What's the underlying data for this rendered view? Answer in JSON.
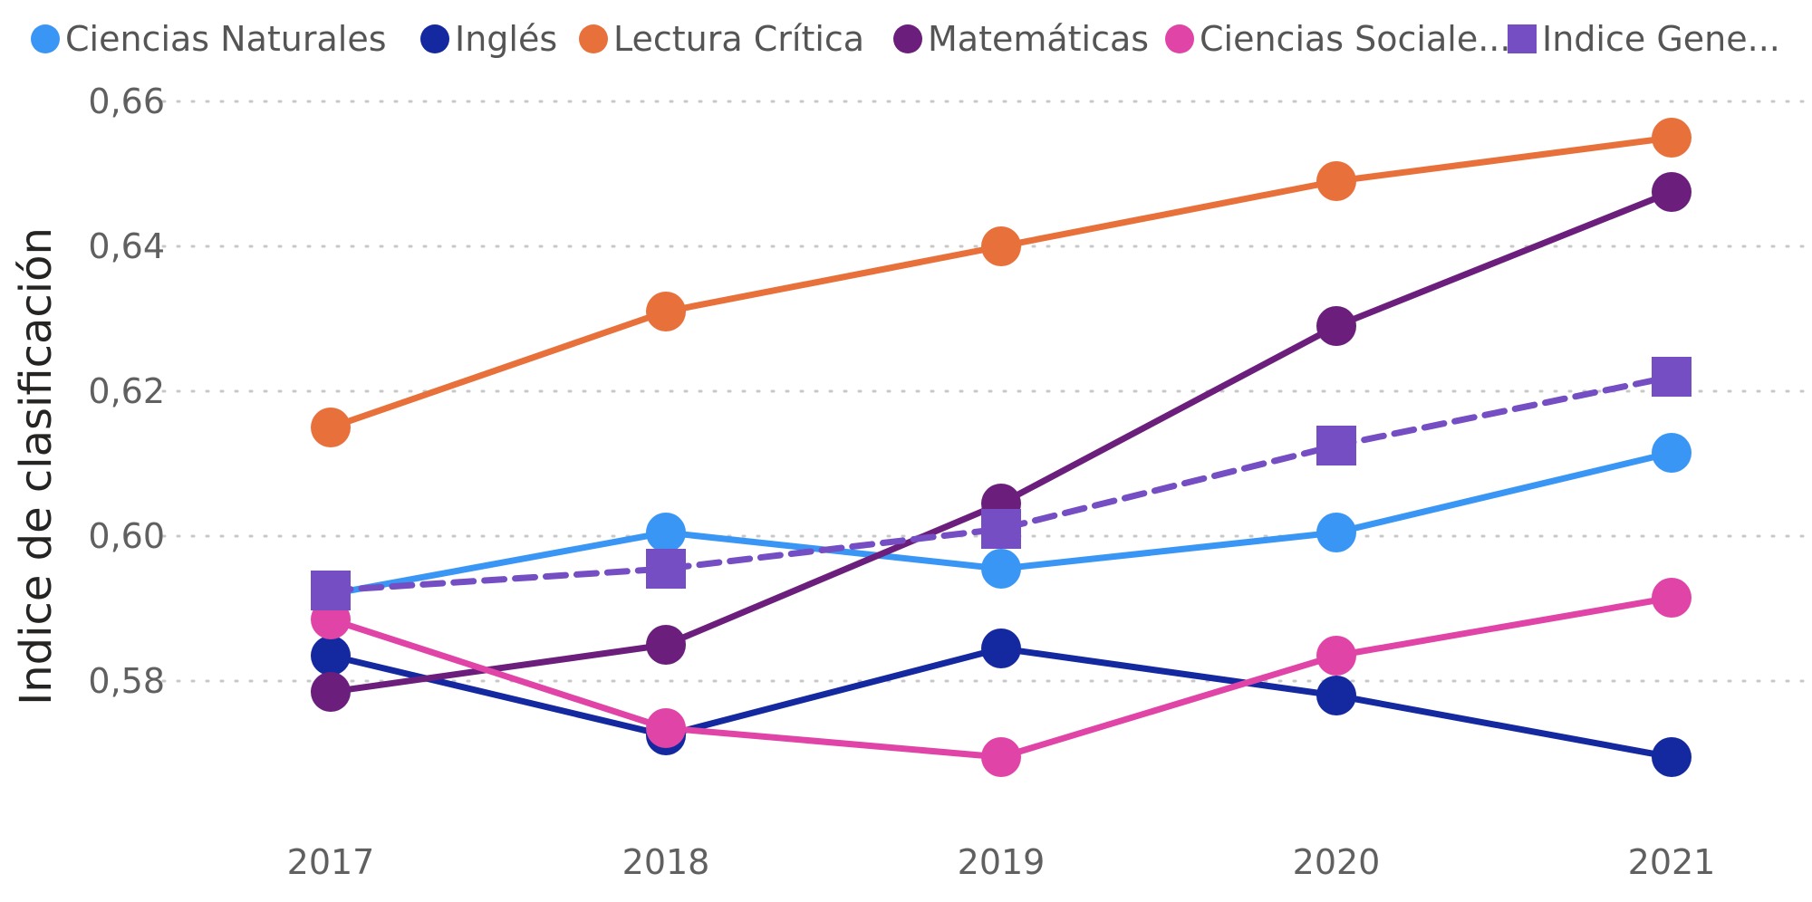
{
  "chart_data": {
    "type": "line",
    "title": "",
    "xlabel": "",
    "ylabel": "Indice de clasificación",
    "x": [
      "2017",
      "2018",
      "2019",
      "2020",
      "2021"
    ],
    "ylim": [
      0.56,
      0.665
    ],
    "yticks": [
      0.58,
      0.6,
      0.62,
      0.64,
      0.66
    ],
    "ytick_labels": [
      "0,58",
      "0,60",
      "0,62",
      "0,64",
      "0,66"
    ],
    "grid": true,
    "legend_position": "top",
    "series": [
      {
        "name": "Ciencias Naturales",
        "color": "#3a96f5",
        "marker": "circle",
        "dashed": false,
        "values": [
          0.592,
          0.6005,
          0.5955,
          0.6005,
          0.6115
        ]
      },
      {
        "name": "Inglés",
        "color": "#1428a0",
        "marker": "circle",
        "dashed": false,
        "values": [
          0.5835,
          0.5725,
          0.5845,
          0.578,
          0.5695
        ]
      },
      {
        "name": "Lectura Crítica",
        "color": "#e8703a",
        "marker": "circle",
        "dashed": false,
        "values": [
          0.615,
          0.631,
          0.64,
          0.649,
          0.655
        ]
      },
      {
        "name": "Matemáticas",
        "color": "#6b1e7c",
        "marker": "circle",
        "dashed": false,
        "values": [
          0.5785,
          0.585,
          0.6045,
          0.629,
          0.6475
        ]
      },
      {
        "name": "Ciencias Sociale...",
        "color": "#e044a7",
        "marker": "circle",
        "dashed": false,
        "values": [
          0.5885,
          0.5735,
          0.5695,
          0.5835,
          0.5915
        ]
      },
      {
        "name": "Indice Gene...",
        "color": "#744ec2",
        "marker": "square",
        "dashed": true,
        "values": [
          0.5925,
          0.5955,
          0.601,
          0.6125,
          0.622
        ]
      }
    ]
  }
}
